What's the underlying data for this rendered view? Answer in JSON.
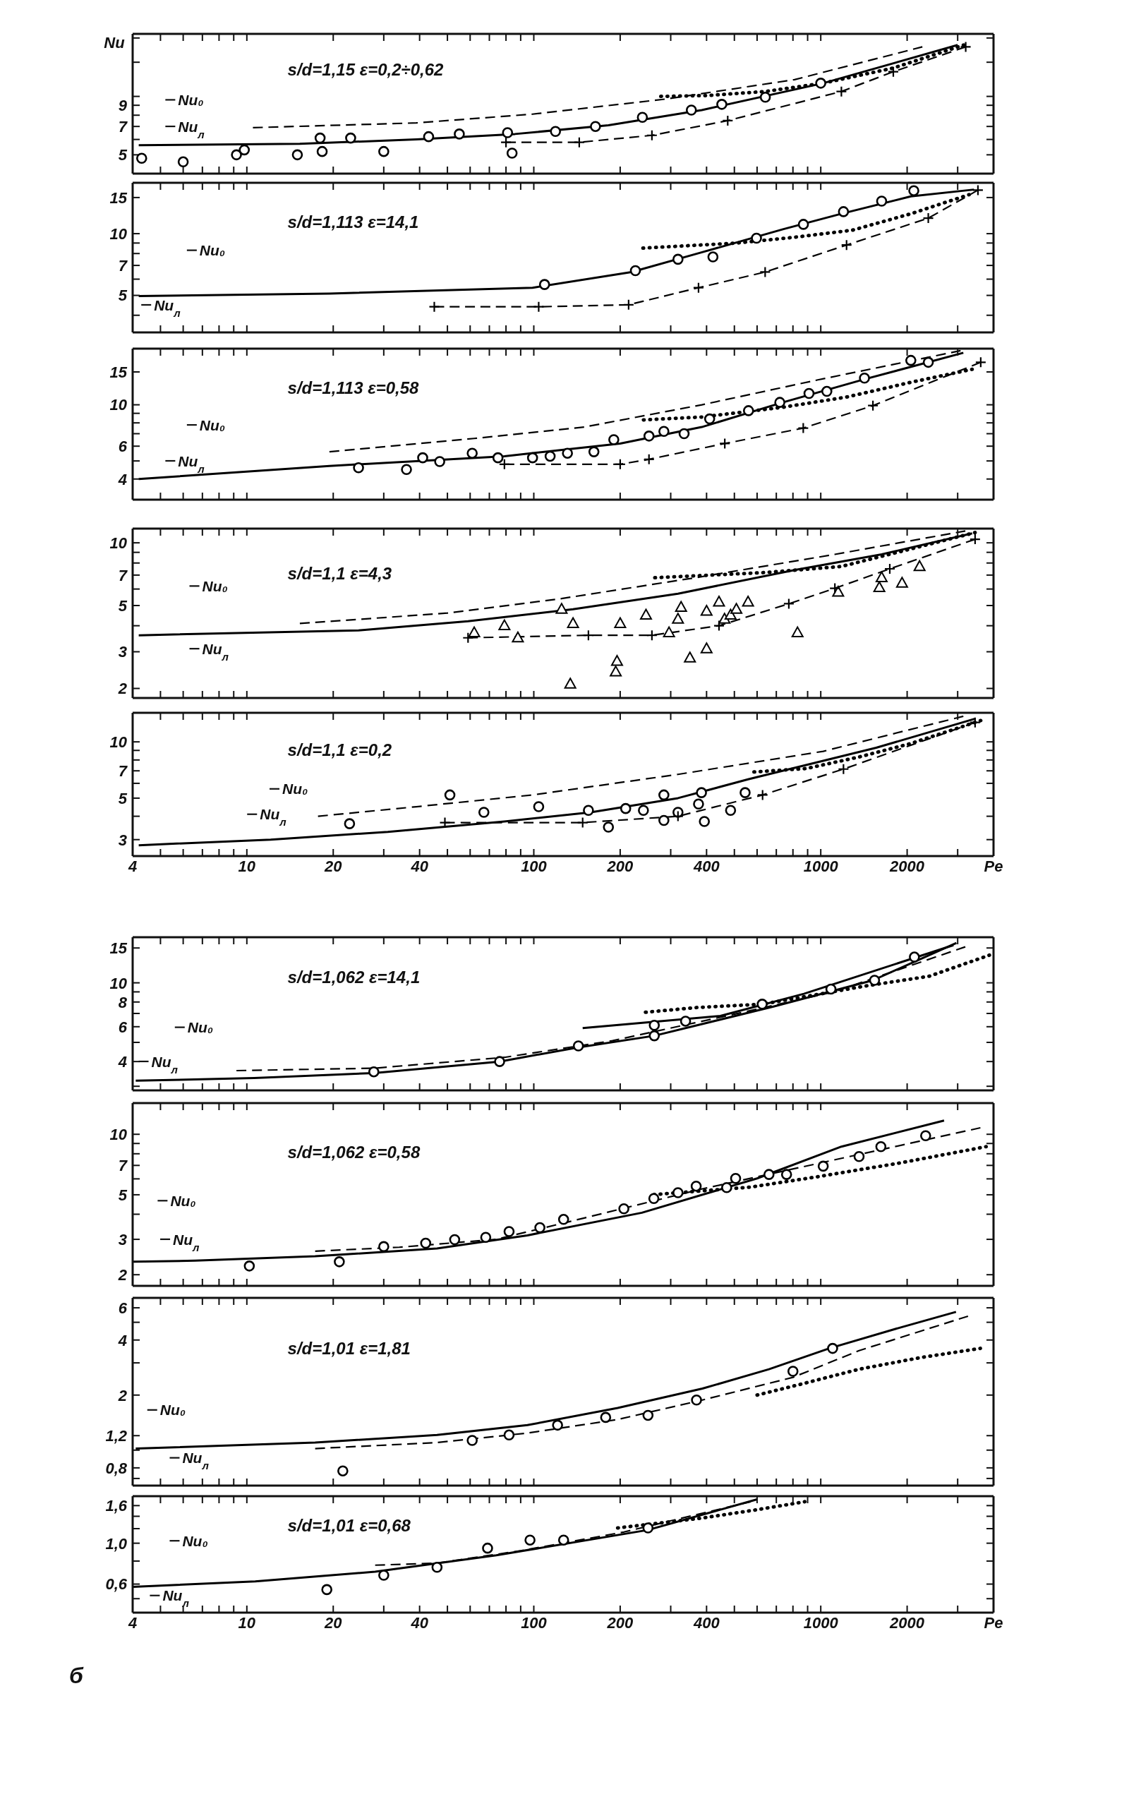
{
  "chart_data": [
    {
      "type": "line",
      "title": "s/d=1,15 ε=0,2÷0,62",
      "ylabel": "Nu",
      "log": "xy",
      "xlim": [
        4,
        4000
      ],
      "ylim": [
        4,
        21
      ],
      "tick_labels": "y",
      "xticks": [
        4,
        {
          "value": 5,
          "label": null
        },
        {
          "value": 6,
          "label": null
        },
        {
          "value": 7,
          "label": null
        },
        {
          "value": 8,
          "label": null
        },
        {
          "value": 9,
          "label": null
        },
        10,
        20,
        {
          "value": 30,
          "label": null
        },
        40,
        {
          "value": 50,
          "label": null
        },
        {
          "value": 60,
          "label": null
        },
        {
          "value": 70,
          "label": null
        },
        {
          "value": 80,
          "label": null
        },
        {
          "value": 90,
          "label": null
        },
        100,
        200,
        {
          "value": 300,
          "label": null
        },
        400,
        {
          "value": 500,
          "label": null
        },
        {
          "value": 600,
          "label": null
        },
        {
          "value": 700,
          "label": null
        },
        {
          "value": 800,
          "label": null
        },
        {
          "value": 900,
          "label": null
        },
        1000,
        2000,
        {
          "value": 3000,
          "label": null
        }
      ],
      "yticks": [
        5,
        {
          "value": 6,
          "label": null
        },
        7,
        {
          "value": 8,
          "label": null
        },
        9,
        {
          "value": 10,
          "label": null
        },
        {
          "value": 15,
          "label": null
        },
        {
          "value": 20,
          "label": null
        }
      ],
      "series": [
        {
          "color": "#000000",
          "line_style": "solid",
          "x": [
            4.2,
            15.3,
            39,
            86,
            182,
            385,
            1020,
            3000
          ],
          "values": [
            5.6,
            5.7,
            6.0,
            6.4,
            7.1,
            8.5,
            11.7,
            18.4
          ]
        },
        {
          "color": "#000000",
          "line_style": "dashed",
          "x": [
            10.5,
            39,
            99,
            290,
            810,
            2260
          ],
          "values": [
            6.9,
            7.3,
            8.1,
            9.7,
            12.2,
            18.0
          ]
        },
        {
          "color": "#000000",
          "line_style": "dashed",
          "marker": "cross",
          "x": [
            80,
            144,
            258,
            474,
            1180,
            1790,
            3200
          ],
          "values": [
            5.8,
            5.8,
            6.3,
            7.5,
            10.6,
            13.4,
            18.0
          ]
        },
        {
          "color": "#000000",
          "line_style": "dotted",
          "x": [
            277,
            400,
            640,
            1020,
            1790,
            3150
          ],
          "values": [
            10.0,
            10.1,
            10.6,
            11.7,
            14.0,
            18.4
          ]
        },
        {
          "type": "scatter",
          "color": "#000000",
          "marker": "circle",
          "x": [
            4.3,
            6.0,
            9.2,
            9.8,
            15,
            18,
            18.3,
            23,
            30,
            43,
            55,
            81,
            84,
            119,
            164,
            239,
            354,
            452,
            641,
            1000
          ],
          "values": [
            4.8,
            4.6,
            5.0,
            5.3,
            5.0,
            6.1,
            5.2,
            6.1,
            5.2,
            6.2,
            6.4,
            6.5,
            5.1,
            6.6,
            7.0,
            7.8,
            8.5,
            9.1,
            9.9,
            11.7
          ]
        }
      ],
      "annotations": [
        "Nu₀",
        "Nu$_{л}$"
      ]
    },
    {
      "type": "line",
      "title": "s/d=1,113 ε=14,1",
      "log": "xy",
      "xlim": [
        4,
        4000
      ],
      "ylim": [
        3.3,
        17.7
      ],
      "tick_labels": "y",
      "xticks": [
        4,
        {
          "value": 5,
          "label": null
        },
        {
          "value": 6,
          "label": null
        },
        {
          "value": 7,
          "label": null
        },
        {
          "value": 8,
          "label": null
        },
        {
          "value": 9,
          "label": null
        },
        10,
        20,
        {
          "value": 30,
          "label": null
        },
        40,
        {
          "value": 50,
          "label": null
        },
        {
          "value": 60,
          "label": null
        },
        {
          "value": 70,
          "label": null
        },
        {
          "value": 80,
          "label": null
        },
        {
          "value": 90,
          "label": null
        },
        100,
        200,
        {
          "value": 300,
          "label": null
        },
        400,
        {
          "value": 500,
          "label": null
        },
        {
          "value": 600,
          "label": null
        },
        {
          "value": 700,
          "label": null
        },
        {
          "value": 800,
          "label": null
        },
        {
          "value": 900,
          "label": null
        },
        1000,
        2000,
        {
          "value": 3000,
          "label": null
        }
      ],
      "yticks": [
        {
          "value": 4,
          "label": null
        },
        5,
        {
          "value": 6,
          "label": null
        },
        7,
        {
          "value": 8,
          "label": null
        },
        {
          "value": 9,
          "label": null
        },
        10,
        15
      ],
      "series": [
        {
          "color": "#000000",
          "line_style": "solid",
          "x": [
            4.2,
            19.4,
            99,
            219,
            384,
            738,
            1180,
            2060,
            3420
          ],
          "values": [
            4.96,
            5.1,
            5.45,
            6.5,
            8.1,
            10.5,
            12.5,
            15.2,
            16.4
          ]
        },
        {
          "color": "#000000",
          "line_style": "dashed",
          "marker": "cross",
          "x": [
            45,
            104,
            214,
            375,
            640,
            1230,
            2370,
            3530
          ],
          "values": [
            4.4,
            4.4,
            4.5,
            5.45,
            6.5,
            8.8,
            11.9,
            16.3
          ]
        },
        {
          "color": "#000000",
          "line_style": "dotted",
          "x": [
            240,
            510,
            810,
            1290,
            2060,
            3290
          ],
          "values": [
            8.5,
            9.0,
            9.6,
            10.4,
            12.5,
            15.5
          ]
        },
        {
          "type": "scatter",
          "color": "#000000",
          "marker": "circle",
          "x": [
            109,
            226,
            318,
            421,
            597,
            870,
            1200,
            1630,
            2110
          ],
          "values": [
            5.65,
            6.6,
            7.5,
            7.7,
            9.5,
            11.1,
            12.8,
            14.4,
            16.2
          ]
        }
      ],
      "annotations": [
        "Nu₀",
        "Nu$_{л}$"
      ]
    },
    {
      "type": "line",
      "title": "s/d=1,113 ε=0,58",
      "log": "xy",
      "xlim": [
        4,
        4000
      ],
      "ylim": [
        3.1,
        20
      ],
      "tick_labels": "y",
      "xticks": [
        4,
        {
          "value": 5,
          "label": null
        },
        {
          "value": 6,
          "label": null
        },
        {
          "value": 7,
          "label": null
        },
        {
          "value": 8,
          "label": null
        },
        {
          "value": 9,
          "label": null
        },
        10,
        20,
        {
          "value": 30,
          "label": null
        },
        40,
        {
          "value": 50,
          "label": null
        },
        {
          "value": 60,
          "label": null
        },
        {
          "value": 70,
          "label": null
        },
        {
          "value": 80,
          "label": null
        },
        {
          "value": 90,
          "label": null
        },
        100,
        200,
        {
          "value": 300,
          "label": null
        },
        400,
        {
          "value": 500,
          "label": null
        },
        {
          "value": 600,
          "label": null
        },
        {
          "value": 700,
          "label": null
        },
        {
          "value": 800,
          "label": null
        },
        {
          "value": 900,
          "label": null
        },
        1000,
        2000,
        {
          "value": 3000,
          "label": null
        }
      ],
      "yticks": [
        4,
        {
          "value": 5,
          "label": null
        },
        6,
        {
          "value": 7,
          "label": null
        },
        {
          "value": 8,
          "label": null
        },
        {
          "value": 9,
          "label": null
        },
        10,
        15
      ],
      "series": [
        {
          "color": "#000000",
          "line_style": "solid",
          "x": [
            4.2,
            19.4,
            79,
            200,
            385,
            738,
            1420,
            3140
          ],
          "values": [
            4.0,
            4.7,
            5.3,
            6.2,
            7.6,
            10.3,
            13.7,
            19.0
          ]
        },
        {
          "color": "#000000",
          "line_style": "dashed",
          "x": [
            19.4,
            62,
            150,
            385,
            977,
            3070
          ],
          "values": [
            5.6,
            6.6,
            7.6,
            10.0,
            13.6,
            19.5
          ]
        },
        {
          "color": "#000000",
          "line_style": "dashed",
          "marker": "cross",
          "x": [
            79,
            200,
            252,
            463,
            869,
            1520,
            3610
          ],
          "values": [
            4.8,
            4.8,
            5.1,
            6.2,
            7.5,
            9.9,
            16.9
          ]
        },
        {
          "color": "#000000",
          "line_style": "dotted",
          "x": [
            241,
            385,
            738,
            1230,
            2060,
            3370
          ],
          "values": [
            8.3,
            8.6,
            9.7,
            11.0,
            13.2,
            15.5
          ]
        },
        {
          "type": "scatter",
          "color": "#000000",
          "marker": "circle",
          "x": [
            24.5,
            36,
            41,
            47,
            61,
            75,
            99,
            114,
            131,
            162,
            190,
            252,
            284,
            334,
            410,
            560,
            720,
            910,
            1050,
            1420,
            2060,
            2370
          ],
          "values": [
            4.6,
            4.5,
            5.2,
            4.96,
            5.5,
            5.2,
            5.2,
            5.3,
            5.5,
            5.6,
            6.5,
            6.8,
            7.2,
            7.0,
            8.4,
            9.3,
            10.3,
            11.5,
            11.8,
            13.9,
            17.3,
            16.9
          ]
        }
      ],
      "annotations": [
        "Nu₀",
        "Nu$_{л}$"
      ]
    },
    {
      "type": "line",
      "title": "s/d=1,1 ε=4,3",
      "log": "xy",
      "xlim": [
        4,
        4000
      ],
      "ylim": [
        1.8,
        11.7
      ],
      "tick_labels": "y",
      "xticks": [
        4,
        {
          "value": 5,
          "label": null
        },
        {
          "value": 6,
          "label": null
        },
        {
          "value": 7,
          "label": null
        },
        {
          "value": 8,
          "label": null
        },
        {
          "value": 9,
          "label": null
        },
        10,
        20,
        {
          "value": 30,
          "label": null
        },
        40,
        {
          "value": 50,
          "label": null
        },
        {
          "value": 60,
          "label": null
        },
        {
          "value": 70,
          "label": null
        },
        {
          "value": 80,
          "label": null
        },
        {
          "value": 90,
          "label": null
        },
        100,
        200,
        {
          "value": 300,
          "label": null
        },
        400,
        {
          "value": 500,
          "label": null
        },
        {
          "value": 600,
          "label": null
        },
        {
          "value": 700,
          "label": null
        },
        {
          "value": 800,
          "label": null
        },
        {
          "value": 900,
          "label": null
        },
        1000,
        2000,
        {
          "value": 3000,
          "label": null
        }
      ],
      "yticks": [
        2,
        3,
        {
          "value": 4,
          "label": null
        },
        5,
        {
          "value": 6,
          "label": null
        },
        7,
        {
          "value": 8,
          "label": null
        },
        {
          "value": 9,
          "label": null
        },
        10
      ],
      "series": [
        {
          "color": "#000000",
          "line_style": "solid",
          "x": [
            4.2,
            24.5,
            59,
            137,
            318,
            810,
            1630,
            3370
          ],
          "values": [
            3.6,
            3.8,
            4.2,
            4.8,
            5.7,
            7.4,
            8.8,
            11.1
          ]
        },
        {
          "color": "#000000",
          "line_style": "dashed",
          "x": [
            15.3,
            50,
            125,
            366,
            1120,
            3190
          ],
          "values": [
            4.1,
            4.6,
            5.4,
            6.8,
            8.8,
            11.4
          ]
        },
        {
          "color": "#000000",
          "line_style": "dashed",
          "marker": "cross",
          "x": [
            59,
            155,
            258,
            442,
            774,
            1120,
            1740,
            3450
          ],
          "values": [
            3.5,
            3.6,
            3.6,
            4.0,
            5.1,
            6.05,
            7.5,
            10.4
          ]
        },
        {
          "color": "#000000",
          "line_style": "dotted",
          "x": [
            264,
            641,
            1180,
            1970,
            3450
          ],
          "values": [
            6.8,
            7.2,
            7.7,
            9.2,
            11.2
          ]
        },
        {
          "type": "scatter",
          "color": "#000000",
          "marker": "triangle",
          "x": [
            62,
            79,
            88,
            125,
            134,
            137,
            193,
            195,
            200,
            246,
            296,
            318,
            326,
            350,
            400,
            400,
            442,
            462,
            485,
            508,
            558,
            830,
            1150,
            1600,
            1630,
            1920,
            2210
          ],
          "values": [
            3.7,
            4.0,
            3.5,
            4.8,
            2.1,
            4.1,
            2.4,
            2.7,
            4.1,
            4.5,
            3.7,
            4.3,
            4.9,
            2.8,
            4.7,
            3.1,
            5.2,
            4.3,
            4.5,
            4.8,
            5.2,
            3.7,
            5.8,
            6.1,
            6.8,
            6.4,
            7.7
          ]
        }
      ],
      "annotations": [
        "Nu₀",
        "Nu$_{л}$"
      ]
    },
    {
      "type": "line",
      "title": "s/d=1,1 ε=0,2",
      "xlabel": "Pe",
      "log": "xy",
      "xlim": [
        4,
        4000
      ],
      "ylim": [
        2.45,
        14.3
      ],
      "xticks": [
        4,
        {
          "value": 5,
          "label": null
        },
        {
          "value": 6,
          "label": null
        },
        {
          "value": 7,
          "label": null
        },
        {
          "value": 8,
          "label": null
        },
        {
          "value": 9,
          "label": null
        },
        10,
        20,
        {
          "value": 30,
          "label": null
        },
        40,
        {
          "value": 50,
          "label": null
        },
        {
          "value": 60,
          "label": null
        },
        {
          "value": 70,
          "label": null
        },
        {
          "value": 80,
          "label": null
        },
        {
          "value": 90,
          "label": null
        },
        100,
        200,
        {
          "value": 300,
          "label": null
        },
        400,
        {
          "value": 500,
          "label": null
        },
        {
          "value": 600,
          "label": null
        },
        {
          "value": 700,
          "label": null
        },
        {
          "value": 800,
          "label": null
        },
        {
          "value": 900,
          "label": null
        },
        1000,
        2000,
        {
          "value": 3000,
          "label": null
        }
      ],
      "yticks": [
        3,
        {
          "value": 4,
          "label": null
        },
        5,
        {
          "value": 6,
          "label": null
        },
        7,
        {
          "value": 8,
          "label": null
        },
        {
          "value": 9,
          "label": null
        },
        10
      ],
      "series": [
        {
          "color": "#000000",
          "line_style": "solid",
          "x": [
            4.2,
            12.1,
            31,
            79,
            158,
            318,
            558,
            1560,
            3450
          ],
          "values": [
            2.8,
            3.0,
            3.3,
            3.75,
            4.2,
            5.0,
            6.3,
            9.3,
            13.3
          ]
        },
        {
          "color": "#000000",
          "line_style": "dashed",
          "x": [
            17.7,
            39,
            99,
            318,
            1020,
            3140
          ],
          "values": [
            4.0,
            4.5,
            5.2,
            6.7,
            8.9,
            13.7
          ]
        },
        {
          "color": "#000000",
          "line_style": "dashed",
          "marker": "cross",
          "x": [
            49,
            148,
            318,
            627,
            1200,
            3450
          ],
          "values": [
            3.7,
            3.7,
            4.0,
            5.2,
            7.15,
            12.7
          ]
        },
        {
          "color": "#000000",
          "line_style": "dotted",
          "x": [
            585,
            890,
            1360,
            2060,
            3610
          ],
          "values": [
            6.9,
            7.2,
            8.3,
            9.8,
            13.0
          ]
        },
        {
          "type": "scatter",
          "color": "#000000",
          "marker": "circle",
          "x": [
            22.8,
            51,
            67,
            104,
            155,
            182,
            209,
            241,
            284,
            284,
            318,
            375,
            384,
            393,
            485,
            545
          ],
          "values": [
            3.65,
            5.2,
            4.2,
            4.5,
            4.3,
            3.5,
            4.4,
            4.3,
            3.8,
            5.2,
            4.2,
            4.65,
            5.35,
            3.75,
            4.3,
            5.35
          ]
        }
      ],
      "annotations": [
        "Nu₀",
        "Nu$_{л}$"
      ]
    },
    {
      "type": "line",
      "title": "s/d=1,062 ε=14,1",
      "log": "xy",
      "xlim": [
        4,
        4000
      ],
      "ylim": [
        2.86,
        17
      ],
      "tick_labels": "y",
      "xticks": [
        4,
        {
          "value": 5,
          "label": null
        },
        {
          "value": 6,
          "label": null
        },
        {
          "value": 7,
          "label": null
        },
        {
          "value": 8,
          "label": null
        },
        {
          "value": 9,
          "label": null
        },
        10,
        20,
        {
          "value": 30,
          "label": null
        },
        40,
        {
          "value": 50,
          "label": null
        },
        {
          "value": 60,
          "label": null
        },
        {
          "value": 70,
          "label": null
        },
        {
          "value": 80,
          "label": null
        },
        {
          "value": 90,
          "label": null
        },
        100,
        200,
        {
          "value": 300,
          "label": null
        },
        400,
        {
          "value": 500,
          "label": null
        },
        {
          "value": 600,
          "label": null
        },
        {
          "value": 700,
          "label": null
        },
        {
          "value": 800,
          "label": null
        },
        {
          "value": 900,
          "label": null
        },
        1000,
        2000,
        {
          "value": 3000,
          "label": null
        }
      ],
      "yticks": [
        {
          "value": 3,
          "label": null
        },
        4,
        {
          "value": 5,
          "label": null
        },
        6,
        {
          "value": 7,
          "label": null
        },
        8,
        {
          "value": 9,
          "label": null
        },
        10,
        15
      ],
      "series": [
        {
          "color": "#000000",
          "line_style": "solid",
          "x": [
            4.1,
            10.6,
            27.7,
            76,
            141,
            263,
            688,
            1520,
            2970
          ],
          "values": [
            3.2,
            3.3,
            3.5,
            4.0,
            4.7,
            5.4,
            7.6,
            10.3,
            15.9
          ]
        },
        {
          "color": "#000000",
          "line_style": "solid",
          "x": [
            148,
            447,
            874,
            2900
          ],
          "values": [
            5.9,
            6.8,
            8.8,
            15.5
          ]
        },
        {
          "color": "#000000",
          "line_style": "dashed",
          "x": [
            9.2,
            27.7,
            79,
            188,
            469,
            1110,
            3190
          ],
          "values": [
            3.6,
            3.7,
            4.2,
            5.1,
            6.8,
            9.0,
            15.2
          ]
        },
        {
          "color": "#000000",
          "line_style": "dotted",
          "x": [
            245,
            369,
            625,
            1410,
            2390,
            3870
          ],
          "values": [
            7.1,
            7.5,
            7.8,
            9.6,
            10.8,
            13.8
          ]
        },
        {
          "type": "scatter",
          "color": "#000000",
          "marker": "circle",
          "x": [
            27.7,
            76,
            143,
            263,
            263,
            338,
            625,
            1085,
            1540,
            2120
          ],
          "values": [
            3.55,
            4.0,
            4.8,
            5.4,
            6.1,
            6.4,
            7.8,
            9.3,
            10.3,
            13.5
          ]
        }
      ],
      "annotations": [
        "Nu₀",
        "Nu$_{л}$"
      ]
    },
    {
      "type": "line",
      "title": "s/d=1,062 ε=0,58",
      "log": "xy",
      "xlim": [
        4,
        4000
      ],
      "ylim": [
        1.76,
        14.3
      ],
      "tick_labels": "y",
      "xticks": [
        4,
        {
          "value": 5,
          "label": null
        },
        {
          "value": 6,
          "label": null
        },
        {
          "value": 7,
          "label": null
        },
        {
          "value": 8,
          "label": null
        },
        {
          "value": 9,
          "label": null
        },
        10,
        20,
        {
          "value": 30,
          "label": null
        },
        40,
        {
          "value": 50,
          "label": null
        },
        {
          "value": 60,
          "label": null
        },
        {
          "value": 70,
          "label": null
        },
        {
          "value": 80,
          "label": null
        },
        {
          "value": 90,
          "label": null
        },
        100,
        200,
        {
          "value": 300,
          "label": null
        },
        400,
        {
          "value": 500,
          "label": null
        },
        {
          "value": 600,
          "label": null
        },
        {
          "value": 700,
          "label": null
        },
        {
          "value": 800,
          "label": null
        },
        {
          "value": 900,
          "label": null
        },
        1000,
        2000,
        {
          "value": 3000,
          "label": null
        }
      ],
      "yticks": [
        2,
        3,
        {
          "value": 4,
          "label": null
        },
        5,
        {
          "value": 6,
          "label": null
        },
        7,
        {
          "value": 8,
          "label": null
        },
        {
          "value": 9,
          "label": null
        },
        10
      ],
      "series": [
        {
          "color": "#000000",
          "line_style": "solid",
          "x": [
            4,
            6.6,
            17.3,
            46,
            95,
            238,
            600,
            1180,
            2690
          ],
          "values": [
            2.32,
            2.35,
            2.47,
            2.7,
            3.14,
            4.07,
            6.03,
            8.68,
            11.71
          ]
        },
        {
          "color": "#000000",
          "line_style": "dashed",
          "x": [
            17.3,
            34,
            74,
            140,
            387,
            3600
          ],
          "values": [
            2.62,
            2.74,
            3.0,
            3.74,
            5.35,
            10.77
          ]
        },
        {
          "color": "#000000",
          "line_style": "dotted",
          "x": [
            262,
            570,
            970,
            1910,
            3770
          ],
          "values": [
            5.01,
            5.46,
            6.14,
            7.22,
            8.68
          ]
        },
        {
          "type": "scatter",
          "color": "#000000",
          "marker": "circle",
          "x": [
            10.2,
            21,
            30,
            42,
            53,
            68,
            82,
            105,
            127,
            206,
            262,
            318,
            368,
            470,
            505,
            660,
            760,
            1020,
            1360,
            1620,
            2320
          ],
          "values": [
            2.21,
            2.32,
            2.76,
            2.87,
            2.99,
            3.07,
            3.28,
            3.43,
            3.77,
            4.26,
            4.79,
            5.12,
            5.52,
            5.43,
            6.03,
            6.31,
            6.31,
            6.94,
            7.75,
            8.68,
            9.84
          ]
        }
      ],
      "annotations": [
        "Nu₀",
        "Nu$_{л}$"
      ]
    },
    {
      "type": "line",
      "title": "s/d=1,01 ε=1,81",
      "log": "xy",
      "xlim": [
        4,
        4000
      ],
      "ylim": [
        0.64,
        6.8
      ],
      "tick_labels": "y",
      "xticks": [
        4,
        {
          "value": 5,
          "label": null
        },
        {
          "value": 6,
          "label": null
        },
        {
          "value": 7,
          "label": null
        },
        {
          "value": 8,
          "label": null
        },
        {
          "value": 9,
          "label": null
        },
        10,
        20,
        {
          "value": 30,
          "label": null
        },
        40,
        {
          "value": 50,
          "label": null
        },
        {
          "value": 60,
          "label": null
        },
        {
          "value": 70,
          "label": null
        },
        {
          "value": 80,
          "label": null
        },
        {
          "value": 90,
          "label": null
        },
        100,
        200,
        {
          "value": 300,
          "label": null
        },
        400,
        {
          "value": 500,
          "label": null
        },
        {
          "value": 600,
          "label": null
        },
        {
          "value": 700,
          "label": null
        },
        {
          "value": 800,
          "label": null
        },
        {
          "value": 900,
          "label": null
        },
        1000,
        2000,
        {
          "value": 3000,
          "label": null
        }
      ],
      "yticks": [
        {
          "value": 0.7,
          "label": null
        },
        {
          "value": 0.8,
          "label": "0,8"
        },
        {
          "value": 1,
          "label": null
        },
        {
          "value": 1.2,
          "label": "1,2"
        },
        2,
        {
          "value": 3,
          "label": null
        },
        4,
        {
          "value": 5,
          "label": null
        },
        6
      ],
      "series": [
        {
          "color": "#000000",
          "line_style": "solid",
          "x": [
            4.1,
            17.3,
            46,
            95,
            196,
            387,
            660,
            1070,
            1910,
            2960
          ],
          "values": [
            1.02,
            1.1,
            1.21,
            1.37,
            1.7,
            2.17,
            2.77,
            3.6,
            4.7,
            5.7
          ]
        },
        {
          "color": "#000000",
          "line_style": "dashed",
          "x": [
            17.3,
            46,
            95,
            196,
            387,
            800,
            1360,
            3260
          ],
          "values": [
            1.02,
            1.1,
            1.24,
            1.47,
            1.88,
            2.5,
            3.5,
            5.4
          ]
        },
        {
          "color": "#000000",
          "line_style": "dotted",
          "x": [
            600,
            840,
            1360,
            2210,
            3600
          ],
          "values": [
            2.0,
            2.28,
            2.77,
            3.2,
            3.6
          ]
        },
        {
          "type": "scatter",
          "color": "#000000",
          "marker": "circle",
          "x": [
            21.6,
            61,
            82,
            121,
            178,
            250,
            369,
            800,
            1100
          ],
          "values": [
            0.77,
            1.13,
            1.21,
            1.37,
            1.51,
            1.55,
            1.88,
            2.7,
            3.6
          ]
        }
      ],
      "annotations": [
        "Nu₀",
        "Nu$_{л}$"
      ]
    },
    {
      "type": "line",
      "title": "s/d=1,01 ε=0,68",
      "xlabel": "Pe",
      "log": "xy",
      "xlim": [
        4,
        4000
      ],
      "ylim": [
        0.42,
        1.8
      ],
      "xticks": [
        4,
        {
          "value": 5,
          "label": null
        },
        {
          "value": 6,
          "label": null
        },
        {
          "value": 7,
          "label": null
        },
        {
          "value": 8,
          "label": null
        },
        {
          "value": 9,
          "label": null
        },
        10,
        20,
        {
          "value": 30,
          "label": null
        },
        40,
        {
          "value": 50,
          "label": null
        },
        {
          "value": 60,
          "label": null
        },
        {
          "value": 70,
          "label": null
        },
        {
          "value": 80,
          "label": null
        },
        {
          "value": 90,
          "label": null
        },
        100,
        200,
        {
          "value": 300,
          "label": null
        },
        400,
        {
          "value": 500,
          "label": null
        },
        {
          "value": 600,
          "label": null
        },
        {
          "value": 700,
          "label": null
        },
        {
          "value": 800,
          "label": null
        },
        {
          "value": 900,
          "label": null
        },
        1000,
        2000,
        {
          "value": 3000,
          "label": null
        }
      ],
      "yticks": [
        {
          "value": 0.5,
          "label": null
        },
        {
          "value": 0.6,
          "label": "0,6"
        },
        {
          "value": 0.8,
          "label": null
        },
        {
          "value": 1,
          "label": "1,0"
        },
        {
          "value": 1.2,
          "label": null
        },
        {
          "value": 1.4,
          "label": null
        },
        {
          "value": 1.6,
          "label": "1,6"
        }
      ],
      "series": [
        {
          "color": "#000000",
          "line_style": "solid",
          "x": [
            4.0,
            10.7,
            28,
            74,
            250,
            600
          ],
          "values": [
            0.58,
            0.62,
            0.7,
            0.86,
            1.18,
            1.73
          ]
        },
        {
          "color": "#000000",
          "line_style": "dashed",
          "x": [
            28,
            46,
            90,
            206,
            570
          ],
          "values": [
            0.76,
            0.78,
            0.91,
            1.15,
            1.68
          ]
        },
        {
          "color": "#000000",
          "line_style": "dotted",
          "x": [
            196,
            387,
            600,
            880
          ],
          "values": [
            1.21,
            1.37,
            1.52,
            1.68
          ]
        },
        {
          "type": "scatter",
          "color": "#000000",
          "marker": "circle",
          "x": [
            19,
            30,
            46,
            69,
            97,
            127,
            250
          ],
          "values": [
            0.56,
            0.67,
            0.74,
            0.94,
            1.04,
            1.04,
            1.21
          ]
        }
      ],
      "annotations": [
        "Nu₀",
        "Nu$_{л}$",
        "б"
      ]
    }
  ]
}
